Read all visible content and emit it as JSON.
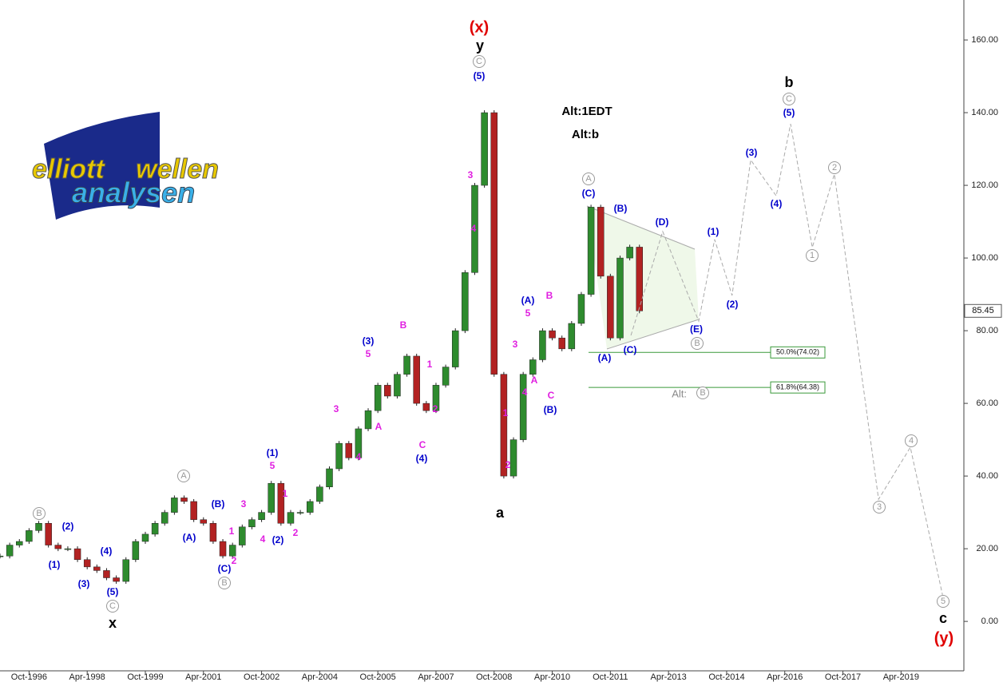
{
  "chart_data": {
    "type": "candlestick",
    "logo": [
      "elliott",
      "wellen",
      "analysen"
    ],
    "x": [
      1996,
      1996.25,
      1996.5,
      1996.75,
      1997,
      1997.25,
      1997.5,
      1997.75,
      1998,
      1998.25,
      1998.5,
      1998.75,
      1999,
      1999.25,
      1999.5,
      1999.75,
      2000,
      2000.25,
      2000.5,
      2000.75,
      2001,
      2001.25,
      2001.5,
      2001.75,
      2002,
      2002.25,
      2002.5,
      2002.75,
      2003,
      2003.25,
      2003.5,
      2003.75,
      2004,
      2004.25,
      2004.5,
      2004.75,
      2005,
      2005.25,
      2005.5,
      2005.75,
      2006,
      2006.25,
      2006.5,
      2006.75,
      2007,
      2007.25,
      2007.5,
      2007.75,
      2008,
      2008.25,
      2008.5,
      2008.75,
      2009,
      2009.25,
      2009.5,
      2009.75,
      2010,
      2010.25,
      2010.5,
      2010.75,
      2011,
      2011.25,
      2011.5,
      2011.75,
      2012,
      2012.25,
      2012.5
    ],
    "values": [
      18,
      21,
      22,
      25,
      27,
      21,
      20,
      20,
      17,
      15,
      14,
      12,
      11,
      17,
      22,
      24,
      27,
      30,
      34,
      33,
      28,
      27,
      22,
      18,
      21,
      26,
      28,
      30,
      38,
      27,
      30,
      30,
      33,
      37,
      42,
      49,
      45,
      53,
      58,
      65,
      62,
      68,
      73,
      60,
      58,
      65,
      70,
      80,
      96,
      120,
      140,
      68,
      40,
      50,
      68,
      72,
      80,
      78,
      75,
      82,
      90,
      114,
      95,
      78,
      100,
      103,
      85.45
    ],
    "up_color": "#2e8b2e",
    "down_color": "#b22222",
    "projection": {
      "x": [
        2012.28,
        2013.1,
        2014.03,
        2014.44,
        2014.89,
        2015.37,
        2016.03,
        2016.4,
        2016.96,
        2017.53,
        2018.67,
        2019.49,
        2020.32
      ],
      "values": [
        78.7,
        107.3,
        82.6,
        105.1,
        89.7,
        127,
        117.1,
        136.9,
        102.9,
        123.1,
        33.6,
        47.9,
        7.3
      ]
    },
    "fib": [
      {
        "value": 74.02,
        "label": "50.0%(74.02)"
      },
      {
        "value": 64.38,
        "label": "61.8%(64.38)"
      }
    ],
    "xlim": [
      1996,
      2020.83
    ],
    "ylim": [
      -13.6,
      171
    ],
    "yticks": [
      {
        "value": 0,
        "label": "0.00"
      },
      {
        "value": 20,
        "label": "20.00"
      },
      {
        "value": 40,
        "label": "40.00"
      },
      {
        "value": 60,
        "label": "60.00"
      },
      {
        "value": 80,
        "label": "80.00"
      },
      {
        "value": 100,
        "label": "100.00"
      },
      {
        "value": 120,
        "label": "120.00"
      },
      {
        "value": 140,
        "label": "140.00"
      },
      {
        "value": 160,
        "label": "160.00"
      }
    ],
    "xticks": [
      {
        "value": 1996.75,
        "label": "Oct-1996"
      },
      {
        "value": 1998.25,
        "label": "Apr-1998"
      },
      {
        "value": 1999.75,
        "label": "Oct-1999"
      },
      {
        "value": 2001.25,
        "label": "Apr-2001"
      },
      {
        "value": 2002.75,
        "label": "Oct-2002"
      },
      {
        "value": 2004.25,
        "label": "Apr-2004"
      },
      {
        "value": 2005.75,
        "label": "Oct-2005"
      },
      {
        "value": 2007.25,
        "label": "Apr-2007"
      },
      {
        "value": 2008.75,
        "label": "Oct-2008"
      },
      {
        "value": 2010.25,
        "label": "Apr-2010"
      },
      {
        "value": 2011.75,
        "label": "Oct-2011"
      },
      {
        "value": 2013.25,
        "label": "Apr-2013"
      },
      {
        "value": 2014.75,
        "label": "Oct-2014"
      },
      {
        "value": 2016.25,
        "label": "Apr-2016"
      },
      {
        "value": 2017.75,
        "label": "Oct-2017"
      },
      {
        "value": 2019.25,
        "label": "Apr-2019"
      }
    ],
    "labels": [
      "(x)",
      "y",
      "C",
      "(5)",
      "Alt:1EDT",
      "Alt:b",
      "b",
      "C",
      "(5)",
      "(3)",
      "2",
      "A",
      "(C)",
      "(B)",
      "(D)",
      "(1)",
      "(4)",
      "1",
      "(2)",
      "(E)",
      "B",
      "(C)",
      "(A)",
      "Alt:",
      "B",
      "3",
      "4",
      "5",
      "c",
      "(y)",
      "a",
      "x",
      "C",
      "(5)",
      "(4)",
      "(3)",
      "(1)",
      "(2)",
      "B",
      "A",
      "(A)",
      "(B)",
      "(C)",
      "B",
      "1",
      "2",
      "3",
      "4",
      "(2)",
      "2",
      "1",
      "(1)",
      "5",
      "3",
      "4",
      "A",
      "(3)",
      "5",
      "B",
      "1",
      "2",
      "C",
      "(4)",
      "3",
      "4",
      "1",
      "2",
      "3",
      "4",
      "A",
      "(A)",
      "5",
      "B",
      "C",
      "(B)"
    ]
  }
}
